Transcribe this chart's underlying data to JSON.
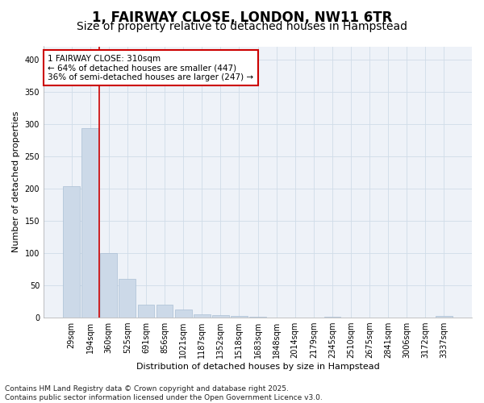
{
  "title": "1, FAIRWAY CLOSE, LONDON, NW11 6TR",
  "subtitle": "Size of property relative to detached houses in Hampstead",
  "xlabel": "Distribution of detached houses by size in Hampstead",
  "ylabel": "Number of detached properties",
  "bar_color": "#ccd9e8",
  "bar_edge_color": "#aabfd4",
  "grid_color": "#d0dce8",
  "background_color": "#ffffff",
  "plot_bg_color": "#eef2f8",
  "categories": [
    "29sqm",
    "194sqm",
    "360sqm",
    "525sqm",
    "691sqm",
    "856sqm",
    "1021sqm",
    "1187sqm",
    "1352sqm",
    "1518sqm",
    "1683sqm",
    "1848sqm",
    "2014sqm",
    "2179sqm",
    "2345sqm",
    "2510sqm",
    "2675sqm",
    "2841sqm",
    "3006sqm",
    "3172sqm",
    "3337sqm"
  ],
  "values": [
    203,
    293,
    100,
    60,
    20,
    20,
    12,
    5,
    4,
    3,
    1,
    0,
    0,
    0,
    1,
    0,
    0,
    0,
    0,
    0,
    2
  ],
  "ylim": [
    0,
    420
  ],
  "yticks": [
    0,
    50,
    100,
    150,
    200,
    250,
    300,
    350,
    400
  ],
  "vline_x_idx": 1,
  "annotation_text": "1 FAIRWAY CLOSE: 310sqm\n← 64% of detached houses are smaller (447)\n36% of semi-detached houses are larger (247) →",
  "annotation_box_color": "#ffffff",
  "annotation_box_edge": "#cc0000",
  "vline_color": "#cc0000",
  "footer_text": "Contains HM Land Registry data © Crown copyright and database right 2025.\nContains public sector information licensed under the Open Government Licence v3.0.",
  "title_fontsize": 12,
  "subtitle_fontsize": 10,
  "annotation_fontsize": 7.5,
  "footer_fontsize": 6.5,
  "tick_fontsize": 7,
  "ylabel_fontsize": 8,
  "xlabel_fontsize": 8
}
